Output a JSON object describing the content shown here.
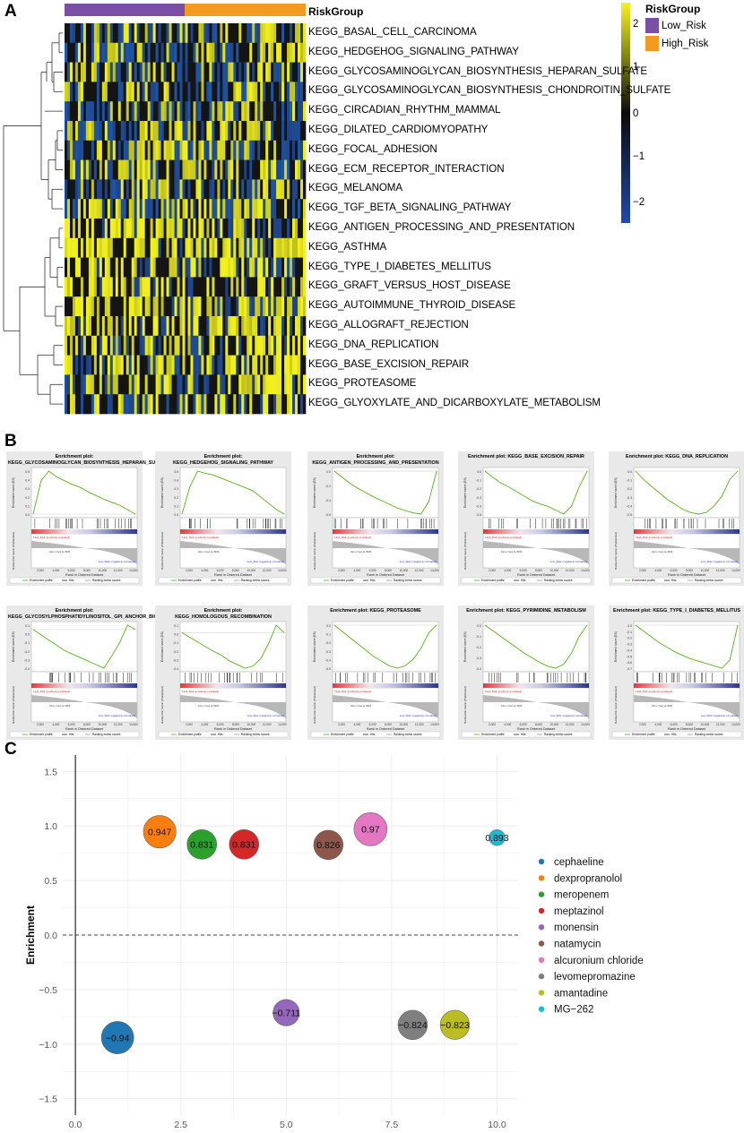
{
  "panels": {
    "a": "A",
    "b": "B",
    "c": "C"
  },
  "heatmap": {
    "group_bar_label": "RiskGroup",
    "legend_title": "RiskGroup",
    "groups": [
      {
        "name": "Low_Risk",
        "color": "#7b4fa6"
      },
      {
        "name": "High_Risk",
        "color": "#f29b1f"
      }
    ],
    "scale_ticks": [
      "2",
      "1",
      "0",
      "−1",
      "−2"
    ],
    "colors": {
      "high": "#f7f41f",
      "mid": "#0b0b0b",
      "low": "#1f4aa8"
    },
    "pathways": [
      "KEGG_BASAL_CELL_CARCINOMA",
      "KEGG_HEDGEHOG_SIGNALING_PATHWAY",
      "KEGG_GLYCOSAMINOGLYCAN_BIOSYNTHESIS_HEPARAN_SULFATE",
      "KEGG_GLYCOSAMINOGLYCAN_BIOSYNTHESIS_CHONDROITIN_SULFATE",
      "KEGG_CIRCADIAN_RHYTHM_MAMMAL",
      "KEGG_DILATED_CARDIOMYOPATHY",
      "KEGG_FOCAL_ADHESION",
      "KEGG_ECM_RECEPTOR_INTERACTION",
      "KEGG_MELANOMA",
      "KEGG_TGF_BETA_SIGNALING_PATHWAY",
      "KEGG_ANTIGEN_PROCESSING_AND_PRESENTATION",
      "KEGG_ASTHMA",
      "KEGG_TYPE_I_DIABETES_MELLITUS",
      "KEGG_GRAFT_VERSUS_HOST_DISEASE",
      "KEGG_AUTOIMMUNE_THYROID_DISEASE",
      "KEGG_ALLOGRAFT_REJECTION",
      "KEGG_DNA_REPLICATION",
      "KEGG_BASE_EXCISION_REPAIR",
      "KEGG_PROTEASOME",
      "KEGG_GLYOXYLATE_AND_DICARBOXYLATE_METABOLISM"
    ]
  },
  "gsea": {
    "ylabel": "Enrichment score (ES)",
    "ylabel2": "Ranked list metric (PreRanked)",
    "xlabel": "Rank in Ordered Dataset",
    "zero_cross": "Zero cross at 3683",
    "high_label": "'High_Risk' (positively correlated)",
    "low_label": "'Low_Risk' (negatively correlated)",
    "legend": [
      "Enrichment profile",
      "Hits",
      "Ranking metric scores"
    ],
    "x_ticks": [
      "2,000",
      "4,000",
      "6,000",
      "8,000",
      "10,000",
      "12,000",
      "14,000"
    ],
    "plots": [
      {
        "title": "Enrichment plot: KEGG_GLYCOSAMINOGLYCAN_BIOSYNTHESIS_HEPARAN_SULFATE",
        "curve": [
          0,
          0.45,
          0.58,
          0.5,
          0.45,
          0.4,
          0.36,
          0.3,
          0.25,
          0.2,
          0.16,
          0.12,
          0.06,
          0.0
        ],
        "y_ticks": [
          "0.5",
          "0.4",
          "0.3",
          "0.2",
          "0.1",
          "0.0"
        ]
      },
      {
        "title": "Enrichment plot: KEGG_HEDGEHOG_SIGNALING_PATHWAY",
        "curve": [
          0,
          0.35,
          0.55,
          0.52,
          0.5,
          0.46,
          0.42,
          0.38,
          0.34,
          0.3,
          0.22,
          0.14,
          0.06,
          0.0
        ],
        "y_ticks": [
          "0.5",
          "0.4",
          "0.3",
          "0.2",
          "0.1",
          "0.0"
        ]
      },
      {
        "title": "Enrichment plot: KEGG_ANTIGEN_PROCESSING_AND_PRESENTATION",
        "curve": [
          0,
          -0.1,
          -0.2,
          -0.28,
          -0.35,
          -0.42,
          -0.48,
          -0.54,
          -0.6,
          -0.64,
          -0.68,
          -0.7,
          -0.5,
          0.0
        ],
        "y_ticks": [
          "0.0",
          "-0.2",
          "-0.4",
          "-0.6"
        ]
      },
      {
        "title": "Enrichment plot: KEGG_BASE_EXCISION_REPAIR",
        "curve": [
          0,
          -0.08,
          -0.15,
          -0.2,
          -0.26,
          -0.32,
          -0.38,
          -0.42,
          -0.45,
          -0.5,
          -0.55,
          -0.45,
          -0.2,
          0.0
        ],
        "y_ticks": [
          "0.0",
          "-0.1",
          "-0.2",
          "-0.3",
          "-0.4",
          "-0.5"
        ]
      },
      {
        "title": "Enrichment plot: KEGG_DNA_REPLICATION",
        "curve": [
          0,
          -0.1,
          -0.18,
          -0.26,
          -0.34,
          -0.4,
          -0.46,
          -0.5,
          -0.52,
          -0.5,
          -0.42,
          -0.3,
          -0.1,
          0.0
        ],
        "y_ticks": [
          "0.0",
          "-0.1",
          "-0.2",
          "-0.3",
          "-0.4",
          "-0.5"
        ]
      },
      {
        "title": "Enrichment plot: KEGG_GLYCOSYLPHOSPHATIDYLINOSITOL_GPI_ANCHOR_BIOSYNTHESIS",
        "curve": [
          0,
          -0.06,
          -0.12,
          -0.18,
          -0.24,
          -0.28,
          -0.32,
          -0.36,
          -0.4,
          -0.44,
          -0.3,
          -0.15,
          0.05,
          0.0
        ],
        "y_ticks": [
          "0.1",
          "0.0",
          "-0.1",
          "-0.2",
          "-0.3",
          "-0.4"
        ]
      },
      {
        "title": "Enrichment plot: KEGG_HOMOLOGOUS_RECOMBINATION",
        "curve": [
          0,
          -0.05,
          -0.1,
          -0.15,
          -0.2,
          -0.24,
          -0.3,
          -0.34,
          -0.38,
          -0.36,
          -0.28,
          -0.12,
          0.08,
          0.0
        ],
        "y_ticks": [
          "0.1",
          "0.0",
          "-0.1",
          "-0.2",
          "-0.3",
          "-0.4"
        ]
      },
      {
        "title": "Enrichment plot: KEGG_PROTEASOME",
        "curve": [
          0,
          -0.08,
          -0.16,
          -0.24,
          -0.32,
          -0.4,
          -0.46,
          -0.52,
          -0.55,
          -0.52,
          -0.44,
          -0.3,
          -0.1,
          0.0
        ],
        "y_ticks": [
          "0.0",
          "-0.1",
          "-0.2",
          "-0.3",
          "-0.4",
          "-0.5"
        ]
      },
      {
        "title": "Enrichment plot: KEGG_PYRIMIDINE_METABOLISM",
        "curve": [
          0,
          -0.06,
          -0.12,
          -0.18,
          -0.24,
          -0.3,
          -0.35,
          -0.4,
          -0.44,
          -0.46,
          -0.42,
          -0.3,
          -0.12,
          0.0
        ],
        "y_ticks": [
          "0.0",
          "-0.1",
          "-0.2",
          "-0.3",
          "-0.4"
        ]
      },
      {
        "title": "Enrichment plot: KEGG_TYPE_I_DIABETES_MELLITUS",
        "curve": [
          0,
          -0.1,
          -0.2,
          -0.3,
          -0.38,
          -0.46,
          -0.52,
          -0.58,
          -0.62,
          -0.66,
          -0.7,
          -0.74,
          -0.6,
          0.0
        ],
        "y_ticks": [
          "0.0",
          "-0.1",
          "-0.2",
          "-0.3",
          "-0.4",
          "-0.5",
          "-0.6",
          "-0.7"
        ]
      }
    ]
  },
  "chart_data": {
    "type": "scatter",
    "title": "",
    "xlabel": "",
    "ylabel": "Enrichment",
    "xlim": [
      -0.3,
      10.5
    ],
    "ylim": [
      -1.65,
      1.65
    ],
    "x_ticks": [
      0.0,
      2.5,
      5.0,
      7.5,
      10.0
    ],
    "x_tick_labels": [
      "0.0",
      "2.5",
      "5.0",
      "7.5",
      "10.0"
    ],
    "y_ticks": [
      1.5,
      1.0,
      0.5,
      0.0,
      -0.5,
      -1.0,
      -1.5
    ],
    "y_tick_labels": [
      "1.5",
      "1.0",
      "0.5",
      "0.0",
      "−0.5",
      "−1.0",
      "−1.5"
    ],
    "reference_line": 0,
    "series": [
      {
        "name": "cephaeline",
        "x": 1,
        "y": -0.94,
        "label": "−0.94",
        "color": "#1f77b4",
        "size": 0.94
      },
      {
        "name": "dexpropranolol",
        "x": 2,
        "y": 0.947,
        "label": "0.947",
        "color": "#ff7f0e",
        "size": 0.947
      },
      {
        "name": "meropenem",
        "x": 3,
        "y": 0.831,
        "label": "0.831",
        "color": "#2ca02c",
        "size": 0.831
      },
      {
        "name": "meptazinol",
        "x": 4,
        "y": 0.831,
        "label": "0.831",
        "color": "#d62728",
        "size": 0.831
      },
      {
        "name": "monensin",
        "x": 5,
        "y": -0.711,
        "label": "−0.711",
        "color": "#9467bd",
        "size": 0.711
      },
      {
        "name": "natamycin",
        "x": 6,
        "y": 0.826,
        "label": "0.826",
        "color": "#8c564b",
        "size": 0.826
      },
      {
        "name": "alcuronium chloride",
        "x": 7,
        "y": 0.97,
        "label": "0.97",
        "color": "#e377c2",
        "size": 0.97
      },
      {
        "name": "levomepromazine",
        "x": 8,
        "y": -0.824,
        "label": "−0.824",
        "color": "#7f7f7f",
        "size": 0.824
      },
      {
        "name": "amantadine",
        "x": 9,
        "y": -0.823,
        "label": "−0.823",
        "color": "#bcbd22",
        "size": 0.823
      },
      {
        "name": "MG−262",
        "x": 10,
        "y": 0.893,
        "label": "0.893",
        "color": "#17becf",
        "size": 0.32
      }
    ],
    "legend_position": "right"
  }
}
